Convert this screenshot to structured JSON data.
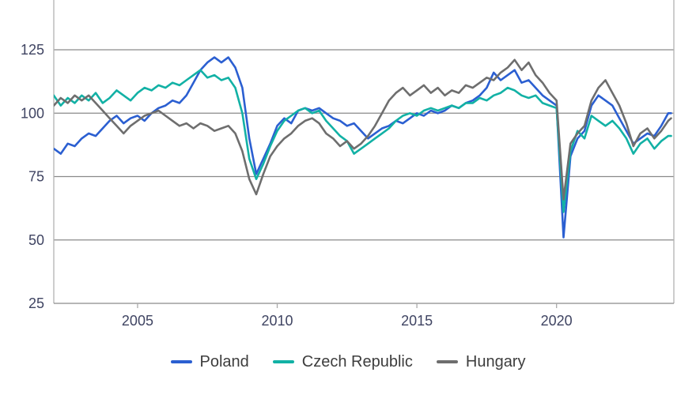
{
  "chart_data": {
    "type": "line",
    "x_axis_tick_labels": [
      "2005",
      "2010",
      "2015",
      "2020"
    ],
    "x_axis_tick_years": [
      2005,
      2010,
      2015,
      2020
    ],
    "y_axis_tick_labels": [
      "25",
      "50",
      "75",
      "100",
      "125"
    ],
    "y_axis_ticks": [
      25,
      50,
      75,
      100,
      125
    ],
    "xlim": [
      2002,
      2024.2
    ],
    "ylim_visible": [
      25,
      145
    ],
    "grid": true,
    "legend_position": "bottom-center",
    "x": [
      2002,
      2002.25,
      2002.5,
      2002.75,
      2003,
      2003.25,
      2003.5,
      2003.75,
      2004,
      2004.25,
      2004.5,
      2004.75,
      2005,
      2005.25,
      2005.5,
      2005.75,
      2006,
      2006.25,
      2006.5,
      2006.75,
      2007,
      2007.25,
      2007.5,
      2007.75,
      2008,
      2008.25,
      2008.5,
      2008.75,
      2009,
      2009.25,
      2009.5,
      2009.75,
      2010,
      2010.25,
      2010.5,
      2010.75,
      2011,
      2011.25,
      2011.5,
      2011.75,
      2012,
      2012.25,
      2012.5,
      2012.75,
      2013,
      2013.25,
      2013.5,
      2013.75,
      2014,
      2014.25,
      2014.5,
      2014.75,
      2015,
      2015.25,
      2015.5,
      2015.75,
      2016,
      2016.25,
      2016.5,
      2016.75,
      2017,
      2017.25,
      2017.5,
      2017.75,
      2018,
      2018.25,
      2018.5,
      2018.75,
      2019,
      2019.25,
      2019.5,
      2019.75,
      2020,
      2020.25,
      2020.5,
      2020.75,
      2021,
      2021.25,
      2021.5,
      2021.75,
      2022,
      2022.25,
      2022.5,
      2022.75,
      2023,
      2023.25,
      2023.5,
      2023.75,
      2024,
      2024.1
    ],
    "series": [
      {
        "name": "Poland",
        "color": "#2b5fd1",
        "values": [
          86,
          84,
          88,
          87,
          90,
          92,
          91,
          94,
          97,
          99,
          96,
          98,
          99,
          97,
          100,
          102,
          103,
          105,
          104,
          107,
          112,
          117,
          120,
          122,
          120,
          122,
          118,
          110,
          90,
          76,
          82,
          88,
          95,
          98,
          96,
          101,
          102,
          101,
          102,
          100,
          98,
          97,
          95,
          96,
          93,
          90,
          92,
          94,
          95,
          97,
          96,
          98,
          100,
          99,
          101,
          100,
          101,
          103,
          102,
          104,
          105,
          107,
          110,
          116,
          113,
          115,
          117,
          112,
          113,
          110,
          107,
          105,
          103,
          51,
          83,
          90,
          93,
          103,
          107,
          105,
          103,
          98,
          93,
          88,
          90,
          92,
          91,
          95,
          100,
          100
        ]
      },
      {
        "name": "Czech Republic",
        "color": "#12b1a5",
        "values": [
          107,
          103,
          106,
          104,
          107,
          105,
          108,
          104,
          106,
          109,
          107,
          105,
          108,
          110,
          109,
          111,
          110,
          112,
          111,
          113,
          115,
          117,
          114,
          115,
          113,
          114,
          110,
          100,
          82,
          74,
          80,
          87,
          93,
          97,
          99,
          101,
          102,
          100,
          101,
          97,
          94,
          91,
          89,
          84,
          86,
          88,
          90,
          92,
          94,
          97,
          99,
          100,
          99,
          101,
          102,
          101,
          102,
          103,
          102,
          104,
          104,
          106,
          105,
          107,
          108,
          110,
          109,
          107,
          106,
          107,
          104,
          103,
          102,
          61,
          85,
          93,
          90,
          99,
          97,
          95,
          97,
          94,
          90,
          84,
          88,
          90,
          86,
          89,
          91,
          91
        ]
      },
      {
        "name": "Hungary",
        "color": "#6e6e6e",
        "values": [
          103,
          106,
          104,
          107,
          105,
          107,
          104,
          101,
          98,
          95,
          92,
          95,
          97,
          99,
          100,
          101,
          99,
          97,
          95,
          96,
          94,
          96,
          95,
          93,
          94,
          95,
          92,
          85,
          74,
          68,
          76,
          83,
          87,
          90,
          92,
          95,
          97,
          98,
          96,
          92,
          90,
          87,
          89,
          86,
          88,
          91,
          95,
          100,
          105,
          108,
          110,
          107,
          109,
          111,
          108,
          110,
          107,
          109,
          108,
          111,
          110,
          112,
          114,
          113,
          116,
          118,
          121,
          117,
          120,
          115,
          112,
          108,
          105,
          66,
          88,
          92,
          95,
          105,
          110,
          113,
          108,
          103,
          96,
          87,
          92,
          94,
          90,
          93,
          97,
          98
        ]
      }
    ]
  },
  "colors": {
    "axis_label": "#3f4462",
    "gridline": "#8a8a8a",
    "frame": "#b2b2b2",
    "tick_mark": "#aaaaaa",
    "legend_text": "#3d3d3d",
    "background": "#ffffff"
  }
}
